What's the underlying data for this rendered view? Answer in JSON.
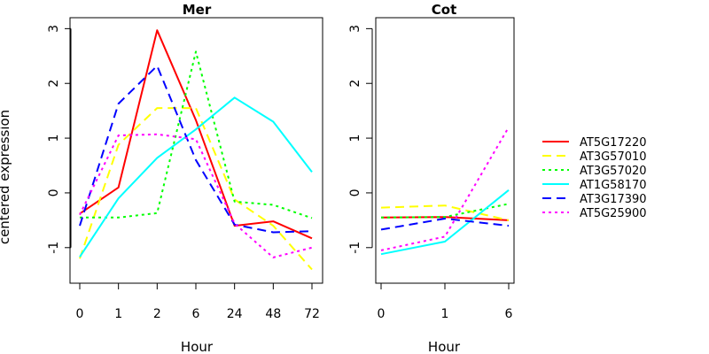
{
  "chart_data": [
    {
      "type": "line",
      "title": "Mer",
      "xlabel": "Hour",
      "ylabel": "centered expression",
      "categories": [
        "0",
        "1",
        "2",
        "6",
        "24",
        "48",
        "72"
      ],
      "yticks": [
        "-1",
        "0",
        "1",
        "2",
        "3"
      ],
      "ylim": [
        -1.65,
        3.2
      ],
      "series": [
        {
          "name": "AT5G17220",
          "values": [
            -0.38,
            0.1,
            2.97,
            1.33,
            -0.6,
            -0.52,
            -0.83
          ]
        },
        {
          "name": "AT3G57010",
          "values": [
            -1.2,
            0.88,
            1.55,
            1.55,
            -0.12,
            -0.6,
            -1.4
          ]
        },
        {
          "name": "AT3G57020",
          "values": [
            -0.45,
            -0.45,
            -0.37,
            2.58,
            -0.16,
            -0.22,
            -0.46
          ]
        },
        {
          "name": "AT1G58170",
          "values": [
            -1.17,
            -0.1,
            0.64,
            1.16,
            1.74,
            1.3,
            0.38
          ]
        },
        {
          "name": "AT3G17390",
          "values": [
            -0.6,
            1.63,
            2.32,
            0.6,
            -0.58,
            -0.72,
            -0.7
          ]
        },
        {
          "name": "AT5G25900",
          "values": [
            -0.4,
            1.05,
            1.07,
            0.98,
            -0.56,
            -1.18,
            -1.0
          ]
        }
      ]
    },
    {
      "type": "line",
      "title": "Cot",
      "xlabel": "Hour",
      "ylabel": "",
      "categories": [
        "0",
        "1",
        "6"
      ],
      "yticks": [
        "-1",
        "0",
        "1",
        "2",
        "3"
      ],
      "ylim": [
        -1.65,
        3.2
      ],
      "series": [
        {
          "name": "AT5G17220",
          "values": [
            -0.45,
            -0.44,
            -0.5
          ]
        },
        {
          "name": "AT3G57010",
          "values": [
            -0.27,
            -0.23,
            -0.5
          ]
        },
        {
          "name": "AT3G57020",
          "values": [
            -0.45,
            -0.44,
            -0.2
          ]
        },
        {
          "name": "AT1G58170",
          "values": [
            -1.12,
            -0.89,
            0.05
          ]
        },
        {
          "name": "AT3G17390",
          "values": [
            -0.67,
            -0.47,
            -0.6
          ]
        },
        {
          "name": "AT5G25900",
          "values": [
            -1.05,
            -0.8,
            1.2
          ]
        }
      ]
    }
  ],
  "legend": {
    "position": "right",
    "entries": [
      {
        "name": "AT5G17220",
        "color": "#FF0000",
        "dash": "solid"
      },
      {
        "name": "AT3G57010",
        "color": "#FFFF00",
        "dash": "dashed"
      },
      {
        "name": "AT3G57020",
        "color": "#00FF00",
        "dash": "dotted"
      },
      {
        "name": "AT1G58170",
        "color": "#00FFFF",
        "dash": "solid"
      },
      {
        "name": "AT3G17390",
        "color": "#0000FF",
        "dash": "dashed"
      },
      {
        "name": "AT5G25900",
        "color": "#FF00FF",
        "dash": "dotted"
      }
    ]
  }
}
